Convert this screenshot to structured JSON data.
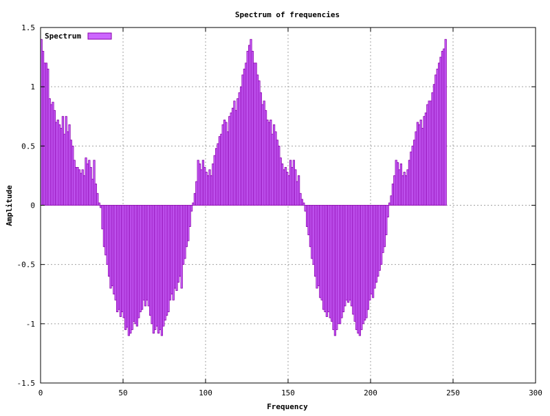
{
  "chart_data": {
    "type": "bar",
    "title": "Spectrum of frequencies",
    "xlabel": "Frequency",
    "ylabel": "Amplitude",
    "xlim": [
      0,
      300
    ],
    "ylim": [
      -1.5,
      1.5
    ],
    "x_ticks": [
      "0",
      "50",
      "100",
      "150",
      "200",
      "250",
      "300"
    ],
    "y_ticks": [
      "1.5",
      "1",
      "0.5",
      "0",
      "-0.5",
      "-1",
      "-1.5"
    ],
    "grid": true,
    "legend_position": "top-left",
    "series": [
      {
        "name": "Spectrum",
        "color": "#cc66ff",
        "edge_color": "#8800aa",
        "x_start": 0,
        "x_step": 1,
        "values": [
          1.4,
          1.3,
          1.2,
          1.2,
          1.15,
          0.9,
          0.85,
          0.87,
          0.8,
          0.7,
          0.72,
          0.68,
          0.65,
          0.75,
          0.6,
          0.75,
          0.62,
          0.68,
          0.55,
          0.5,
          0.38,
          0.32,
          0.32,
          0.3,
          0.27,
          0.3,
          0.25,
          0.4,
          0.35,
          0.38,
          0.32,
          0.22,
          0.38,
          0.18,
          0.1,
          0.02,
          -0.02,
          -0.2,
          -0.35,
          -0.42,
          -0.5,
          -0.6,
          -0.7,
          -0.68,
          -0.75,
          -0.8,
          -0.9,
          -0.88,
          -0.94,
          -0.9,
          -0.95,
          -1.05,
          -1.03,
          -1.1,
          -1.08,
          -1.05,
          -0.98,
          -1.0,
          -1.02,
          -0.95,
          -0.9,
          -0.88,
          -0.8,
          -0.85,
          -0.8,
          -0.85,
          -0.93,
          -1.0,
          -1.08,
          -1.05,
          -1.02,
          -1.08,
          -1.05,
          -1.1,
          -1.02,
          -0.97,
          -0.93,
          -0.9,
          -0.8,
          -0.75,
          -0.8,
          -0.7,
          -0.72,
          -0.65,
          -0.6,
          -0.7,
          -0.5,
          -0.45,
          -0.35,
          -0.3,
          -0.18,
          -0.05,
          0.02,
          0.1,
          0.2,
          0.38,
          0.35,
          0.3,
          0.38,
          0.32,
          0.28,
          0.25,
          0.3,
          0.25,
          0.35,
          0.42,
          0.48,
          0.52,
          0.58,
          0.6,
          0.68,
          0.72,
          0.7,
          0.62,
          0.75,
          0.78,
          0.82,
          0.88,
          0.8,
          0.9,
          0.95,
          1.0,
          1.1,
          1.15,
          1.2,
          1.3,
          1.35,
          1.4,
          1.3,
          1.2,
          1.2,
          1.1,
          1.05,
          0.95,
          0.85,
          0.88,
          0.8,
          0.72,
          0.7,
          0.72,
          0.6,
          0.68,
          0.62,
          0.55,
          0.5,
          0.4,
          0.35,
          0.3,
          0.32,
          0.28,
          0.25,
          0.38,
          0.32,
          0.38,
          0.3,
          0.2,
          0.25,
          0.1,
          0.05,
          0.02,
          -0.05,
          -0.18,
          -0.25,
          -0.35,
          -0.45,
          -0.5,
          -0.6,
          -0.7,
          -0.68,
          -0.78,
          -0.8,
          -0.88,
          -0.9,
          -0.94,
          -0.9,
          -0.95,
          -0.98,
          -1.05,
          -1.1,
          -1.05,
          -1.0,
          -1.0,
          -0.95,
          -0.9,
          -0.85,
          -0.8,
          -0.82,
          -0.8,
          -0.85,
          -0.92,
          -0.98,
          -1.05,
          -1.08,
          -1.1,
          -1.05,
          -1.0,
          -0.97,
          -0.95,
          -0.88,
          -0.8,
          -0.75,
          -0.78,
          -0.7,
          -0.65,
          -0.6,
          -0.55,
          -0.5,
          -0.4,
          -0.35,
          -0.25,
          -0.1,
          0.02,
          0.08,
          0.18,
          0.25,
          0.38,
          0.36,
          0.3,
          0.35,
          0.25,
          0.28,
          0.25,
          0.3,
          0.38,
          0.45,
          0.5,
          0.55,
          0.62,
          0.7,
          0.68,
          0.72,
          0.65,
          0.75,
          0.78,
          0.85,
          0.88,
          0.88,
          0.95,
          1.02,
          1.1,
          1.15,
          1.2,
          1.25,
          1.3,
          1.32,
          1.4
        ]
      }
    ]
  }
}
